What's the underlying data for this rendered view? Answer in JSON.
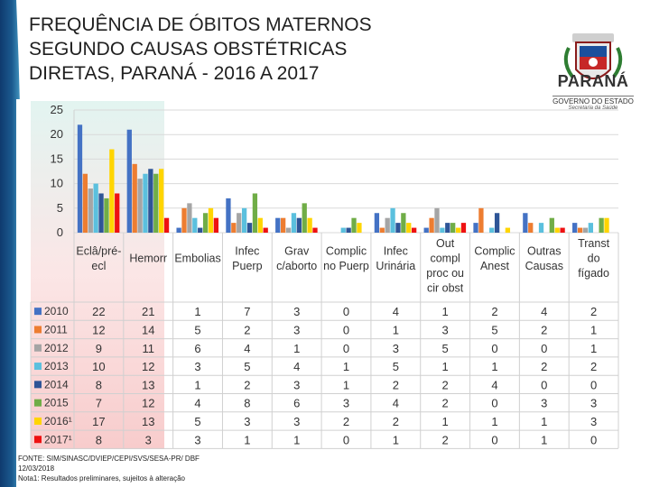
{
  "title_lines": [
    "FREQUÊNCIA DE ÓBITOS MATERNOS",
    "SEGUNDO CAUSAS OBSTÉTRICAS",
    "DIRETAS, PARANÁ - 2016 A 2017"
  ],
  "logo": {
    "name": "PARANÁ",
    "government": "GOVERNO DO ESTADO",
    "department": "Secretaria da Saúde"
  },
  "footer": {
    "source": "FONTE: SIM/SINASC/DVIEP/CEPI/SVS/SESA-PR/ DBF",
    "date": "12/03/2018",
    "note": "Nota1: Resultados preliminares, sujeitos à alteração"
  },
  "colors": {
    "2010": "#4472c4",
    "2011": "#ed7d31",
    "2012": "#a5a5a5",
    "2013": "#5bc0de",
    "2014": "#2e5597",
    "2015": "#70ad47",
    "2016": "#ffd500",
    "2017": "#ee1111"
  },
  "chart_data": {
    "type": "bar",
    "ylim": [
      0,
      25
    ],
    "yticks": [
      "0",
      "5",
      "10",
      "15",
      "20",
      "25"
    ],
    "category_labels": [
      [
        "Eclâ/pré-",
        "ecl"
      ],
      [
        "Hemorr"
      ],
      [
        "Embolias"
      ],
      [
        "Infec",
        "Puerp"
      ],
      [
        "Grav",
        "c/aborto"
      ],
      [
        "Complic",
        "no Puerp"
      ],
      [
        "Infec",
        "Urinária"
      ],
      [
        "Out",
        "compl",
        "proc ou",
        "cir obst"
      ],
      [
        "Complic",
        "Anest"
      ],
      [
        "Outras",
        "Causas"
      ],
      [
        "Transt",
        "do",
        "fígado"
      ]
    ],
    "series": [
      {
        "name": "2010",
        "legend": "2010",
        "values": [
          22,
          21,
          1,
          7,
          3,
          0,
          4,
          1,
          2,
          4,
          2
        ]
      },
      {
        "name": "2011",
        "legend": "2011",
        "values": [
          12,
          14,
          5,
          2,
          3,
          0,
          1,
          3,
          5,
          2,
          1
        ]
      },
      {
        "name": "2012",
        "legend": "2012",
        "values": [
          9,
          11,
          6,
          4,
          1,
          0,
          3,
          5,
          0,
          0,
          1
        ]
      },
      {
        "name": "2013",
        "legend": "2013",
        "values": [
          10,
          12,
          3,
          5,
          4,
          1,
          5,
          1,
          1,
          2,
          2
        ]
      },
      {
        "name": "2014",
        "legend": "2014",
        "values": [
          8,
          13,
          1,
          2,
          3,
          1,
          2,
          2,
          4,
          0,
          0
        ]
      },
      {
        "name": "2015",
        "legend": "2015",
        "values": [
          7,
          12,
          4,
          8,
          6,
          3,
          4,
          2,
          0,
          3,
          3
        ]
      },
      {
        "name": "2016",
        "legend": "2016¹",
        "values": [
          17,
          13,
          5,
          3,
          3,
          2,
          2,
          1,
          1,
          1,
          3
        ]
      },
      {
        "name": "2017",
        "legend": "2017¹",
        "values": [
          8,
          3,
          3,
          1,
          1,
          0,
          1,
          2,
          0,
          1,
          0
        ]
      }
    ]
  }
}
